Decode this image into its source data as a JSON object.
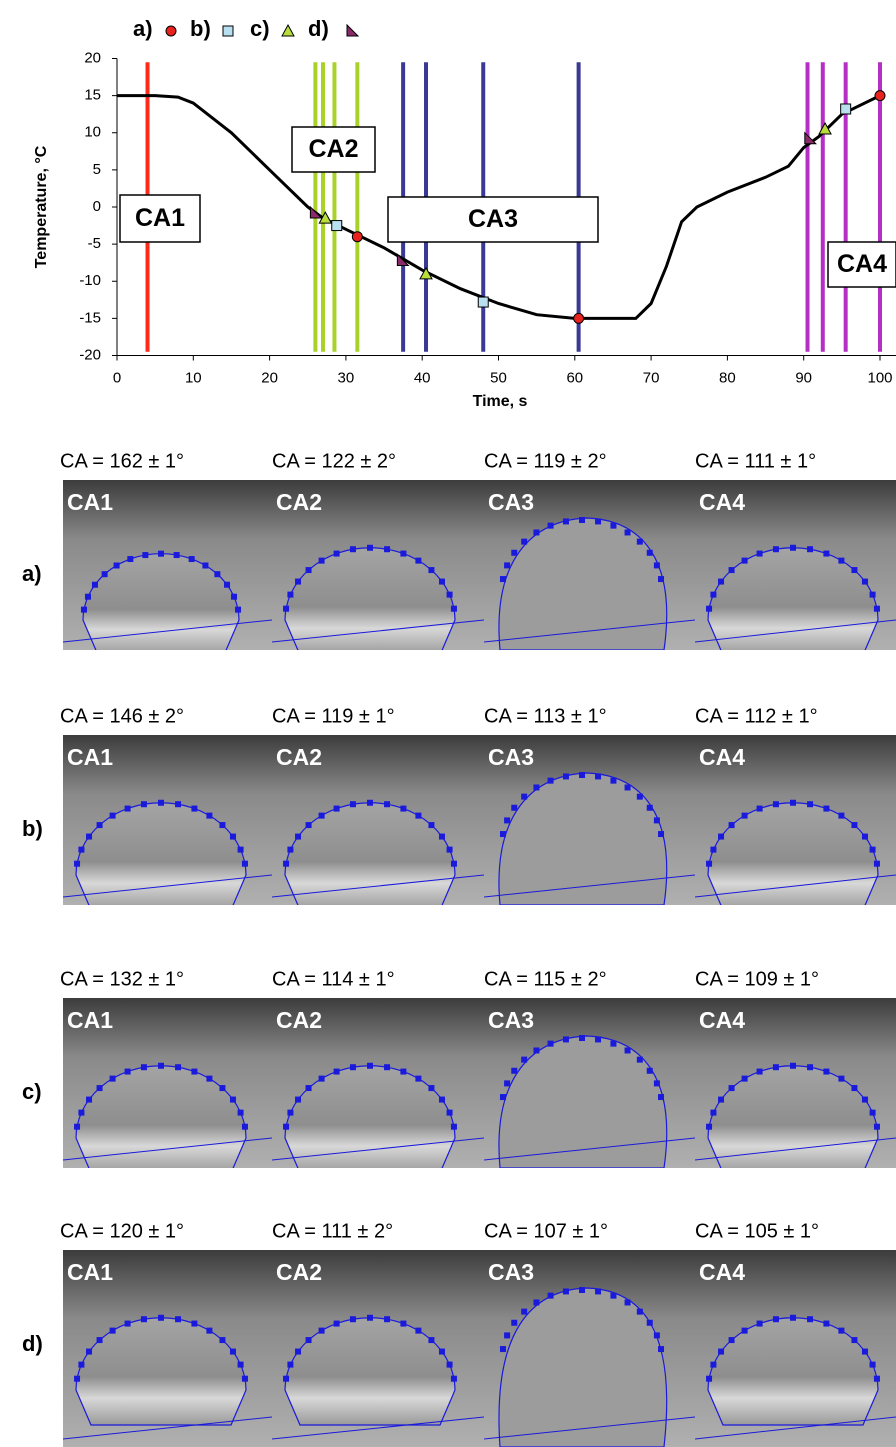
{
  "chart_data": {
    "type": "line",
    "x_label": "Time, s",
    "y_label": "Temperature, °C",
    "xlim": [
      0,
      100
    ],
    "ylim": [
      -20,
      20
    ],
    "xticks": [
      0,
      10,
      20,
      30,
      40,
      50,
      60,
      70,
      80,
      90,
      100
    ],
    "yticks": [
      -20,
      -15,
      -10,
      -5,
      0,
      5,
      10,
      15,
      20
    ],
    "curve": {
      "color": "#000000",
      "x": [
        0,
        5,
        8,
        10,
        15,
        20,
        25,
        27,
        30,
        35,
        40,
        45,
        50,
        55,
        60,
        65,
        68,
        70,
        72,
        74,
        76,
        80,
        85,
        88,
        90,
        92,
        95,
        100
      ],
      "y": [
        15,
        15,
        14.8,
        14,
        10,
        5,
        0,
        -1.5,
        -3,
        -5.5,
        -8.5,
        -11,
        -13,
        -14.5,
        -15,
        -15,
        -15,
        -13,
        -8,
        -2,
        0,
        2,
        4,
        5.5,
        8,
        9.5,
        12.5,
        15
      ]
    },
    "vlines": [
      {
        "color": "#ff2a1a",
        "x": [
          4
        ]
      },
      {
        "color": "#a8d22a",
        "x": [
          26,
          27,
          28.5,
          31.5
        ]
      },
      {
        "color": "#3a3a96",
        "x": [
          37.5,
          40.5,
          48,
          60.5
        ]
      },
      {
        "color": "#b52fc4",
        "x": [
          90.5,
          92.5,
          95.5,
          100
        ]
      }
    ],
    "series": [
      {
        "name": "a)",
        "marker": "circle",
        "color": "#e8231f",
        "x": [
          31.5,
          60.5,
          100
        ],
        "values": [
          -4,
          -15,
          15
        ]
      },
      {
        "name": "b)",
        "marker": "square",
        "color": "#b8e0ee",
        "x": [
          28.8,
          48,
          95.5
        ],
        "values": [
          -2.5,
          -12.8,
          13.2
        ]
      },
      {
        "name": "c)",
        "marker": "triangle",
        "color": "#b8dc3a",
        "x": [
          27.3,
          40.5,
          92.8
        ],
        "values": [
          -1.5,
          -9,
          10.5
        ]
      },
      {
        "name": "d)",
        "marker": "corner",
        "color": "#8a2a6a",
        "x": [
          26,
          37.4,
          90.8
        ],
        "values": [
          -0.8,
          -7.2,
          9.2
        ]
      }
    ],
    "annotations": [
      "CA1",
      "CA2",
      "CA3",
      "CA4"
    ]
  },
  "panels": {
    "rows": [
      {
        "label": "a)",
        "cells": [
          {
            "caption": "CA = 162 ± 1°",
            "tag": "CA1"
          },
          {
            "caption": "CA = 122 ± 2°",
            "tag": "CA2"
          },
          {
            "caption": "CA = 119 ± 2°",
            "tag": "CA3"
          },
          {
            "caption": "CA = 111 ± 1°",
            "tag": "CA4"
          }
        ]
      },
      {
        "label": "b)",
        "cells": [
          {
            "caption": "CA = 146 ± 2°",
            "tag": "CA1"
          },
          {
            "caption": "CA = 119 ± 1°",
            "tag": "CA2"
          },
          {
            "caption": "CA = 113 ± 1°",
            "tag": "CA3"
          },
          {
            "caption": "CA = 112 ± 1°",
            "tag": "CA4"
          }
        ]
      },
      {
        "label": "c)",
        "cells": [
          {
            "caption": "CA = 132 ± 1°",
            "tag": "CA1"
          },
          {
            "caption": "CA = 114 ± 1°",
            "tag": "CA2"
          },
          {
            "caption": "CA = 115 ± 2°",
            "tag": "CA3"
          },
          {
            "caption": "CA = 109 ± 1°",
            "tag": "CA4"
          }
        ]
      },
      {
        "label": "d)",
        "cells": [
          {
            "caption": "CA = 120 ± 1°",
            "tag": "CA1"
          },
          {
            "caption": "CA = 111 ± 2°",
            "tag": "CA2"
          },
          {
            "caption": "CA = 107 ± 1°",
            "tag": "CA3"
          },
          {
            "caption": "CA = 105 ± 1°",
            "tag": "CA4"
          }
        ]
      }
    ]
  }
}
